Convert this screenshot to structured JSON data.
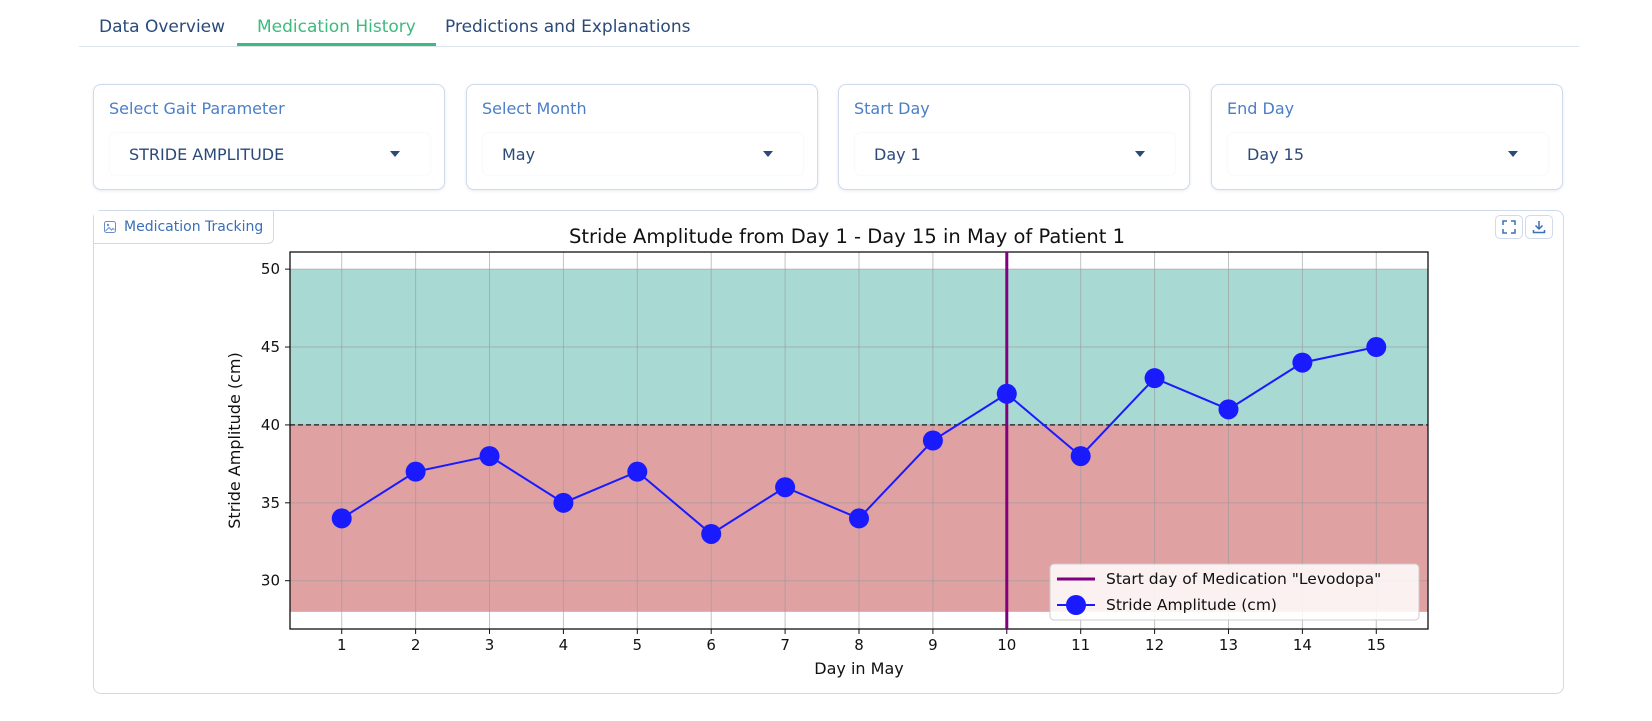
{
  "tabs": [
    {
      "label": "Data Overview",
      "active": false
    },
    {
      "label": "Medication History",
      "active": true
    },
    {
      "label": "Predictions and Explanations",
      "active": false
    }
  ],
  "selectors": {
    "gait": {
      "label": "Select Gait Parameter",
      "value": "STRIDE AMPLITUDE"
    },
    "month": {
      "label": "Select Month",
      "value": "May"
    },
    "start": {
      "label": "Start Day",
      "value": "Day 1"
    },
    "end": {
      "label": "End Day",
      "value": "Day 15"
    }
  },
  "panel": {
    "tag_label": "Medication Tracking",
    "icons": [
      "image-icon",
      "fullscreen-icon",
      "download-icon"
    ]
  },
  "colors": {
    "accent": "#3dba7e",
    "link": "#2b4a7a",
    "good_zone": "#a9d9d3",
    "bad_zone": "#e0a1a3",
    "series": "#1a1aff",
    "med_line": "#800080"
  },
  "chart_data": {
    "type": "line",
    "title": "Stride Amplitude from Day 1 - Day 15 in May of Patient 1",
    "xlabel": "Day in May",
    "ylabel": "Stride Amplitude (cm)",
    "x": [
      1,
      2,
      3,
      4,
      5,
      6,
      7,
      8,
      9,
      10,
      11,
      12,
      13,
      14,
      15
    ],
    "series": [
      {
        "name": "Stride Amplitude (cm)",
        "values": [
          34,
          37,
          38,
          35,
          37,
          33,
          36,
          34,
          39,
          42,
          38,
          43,
          41,
          44,
          45
        ]
      }
    ],
    "xlim": [
      0.3,
      15.7
    ],
    "ylim": [
      26.9,
      51.1
    ],
    "yticks": [
      30,
      35,
      40,
      45,
      50
    ],
    "threshold": 40,
    "zones": {
      "good": [
        40,
        50
      ],
      "bad": [
        28,
        40
      ]
    },
    "medication_start": {
      "x": 10,
      "label": "Start day of Medication \"Levodopa\""
    },
    "grid": true,
    "legend_position": "lower-right"
  }
}
